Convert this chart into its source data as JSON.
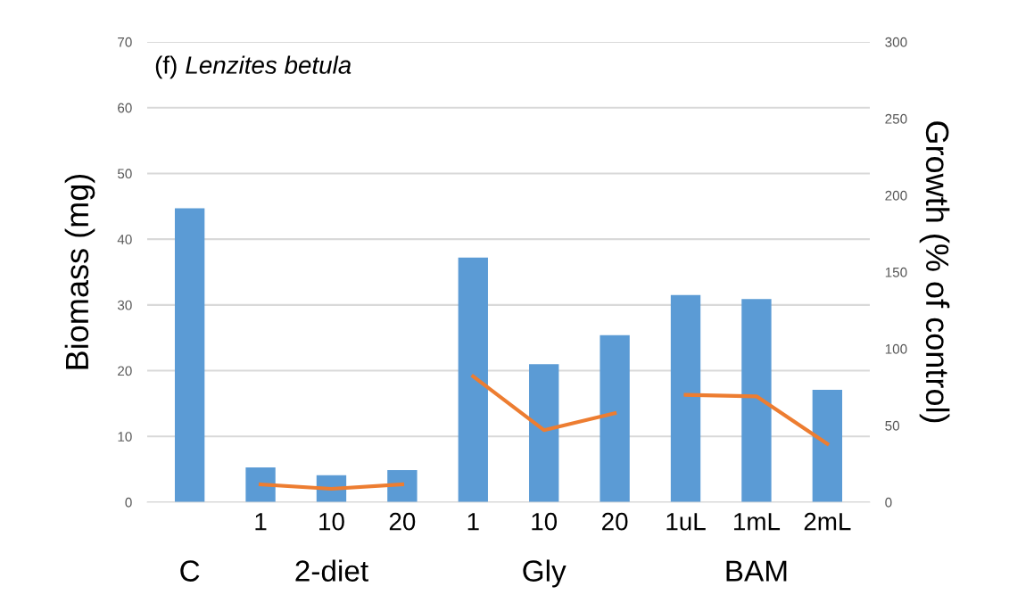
{
  "chart_data": {
    "type": "bar",
    "title": "(f) Lenzites betula",
    "ylabel": "Biomass (mg)",
    "y2label": "Growth (% of control)",
    "categories": [
      null,
      "1",
      "10",
      "20",
      "1",
      "10",
      "20",
      "1uL",
      "1mL",
      "2mL"
    ],
    "annotations": [
      "C",
      "2-diet",
      "Gly",
      "BAM"
    ],
    "series": [
      {
        "color": "#5b9bd5",
        "values": [
          44.7,
          5.3,
          4.1,
          4.9,
          37.2,
          21.0,
          25.4,
          31.5,
          30.9,
          17.1
        ]
      },
      {
        "type": "line",
        "axis": "y2",
        "color": "#ed7d31",
        "values": [
          null,
          11.6,
          8.7,
          11.6,
          null,
          null,
          null,
          null,
          null,
          null
        ]
      },
      {
        "type": "line",
        "axis": "y2",
        "color": "#ed7d31",
        "values": [
          null,
          null,
          null,
          null,
          82,
          47,
          58,
          null,
          null,
          null
        ]
      },
      {
        "type": "line",
        "axis": "y2",
        "color": "#ed7d31",
        "values": [
          null,
          null,
          null,
          null,
          null,
          null,
          null,
          70,
          69,
          38
        ]
      }
    ],
    "ylim": [
      0,
      70
    ],
    "yticks": [
      0,
      10,
      20,
      30,
      40,
      50,
      60,
      70
    ],
    "y2lim": [
      0,
      300
    ],
    "y2ticks": [
      0,
      50,
      100,
      150,
      200,
      250,
      300
    ],
    "grid": "y",
    "legend": false
  }
}
